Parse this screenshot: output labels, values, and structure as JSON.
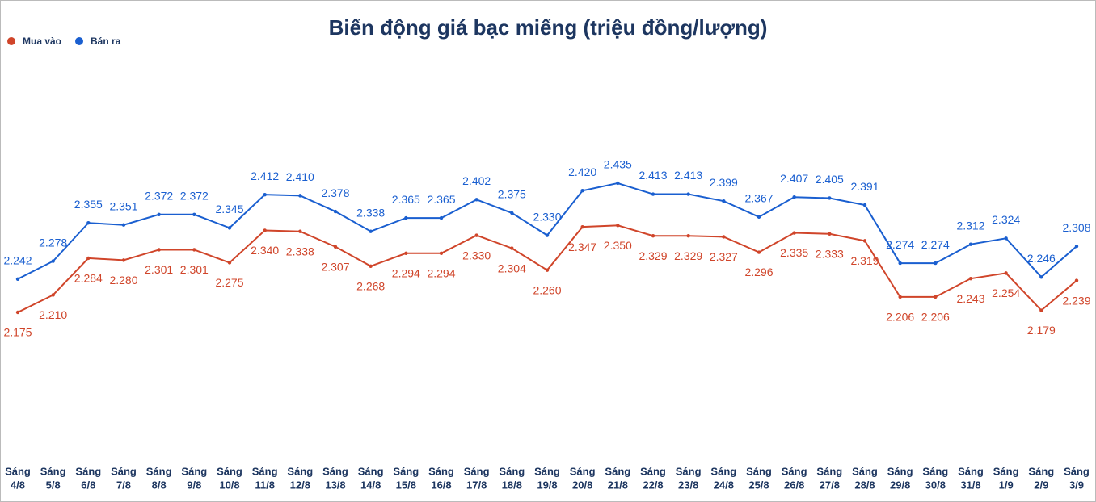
{
  "chart_data": {
    "type": "line",
    "title": "Biến động giá bạc miếng (triệu đồng/lượng)",
    "categories": [
      [
        "Sáng",
        "4/8"
      ],
      [
        "Sáng",
        "5/8"
      ],
      [
        "Sáng",
        "6/8"
      ],
      [
        "Sáng",
        "7/8"
      ],
      [
        "Sáng",
        "8/8"
      ],
      [
        "Sáng",
        "9/8"
      ],
      [
        "Sáng",
        "10/8"
      ],
      [
        "Sáng",
        "11/8"
      ],
      [
        "Sáng",
        "12/8"
      ],
      [
        "Sáng",
        "13/8"
      ],
      [
        "Sáng",
        "14/8"
      ],
      [
        "Sáng",
        "15/8"
      ],
      [
        "Sáng",
        "16/8"
      ],
      [
        "Sáng",
        "17/8"
      ],
      [
        "Sáng",
        "18/8"
      ],
      [
        "Sáng",
        "19/8"
      ],
      [
        "Sáng",
        "20/8"
      ],
      [
        "Sáng",
        "21/8"
      ],
      [
        "Sáng",
        "22/8"
      ],
      [
        "Sáng",
        "23/8"
      ],
      [
        "Sáng",
        "24/8"
      ],
      [
        "Sáng",
        "25/8"
      ],
      [
        "Sáng",
        "26/8"
      ],
      [
        "Sáng",
        "27/8"
      ],
      [
        "Sáng",
        "28/8"
      ],
      [
        "Sáng",
        "29/8"
      ],
      [
        "Sáng",
        "30/8"
      ],
      [
        "Sáng",
        "31/8"
      ],
      [
        "Sáng",
        "1/9"
      ],
      [
        "Sáng",
        "2/9"
      ],
      [
        "Sáng",
        "3/9"
      ]
    ],
    "series": [
      {
        "name": "Mua vào",
        "color": "#d0452a",
        "values": [
          2.175,
          2.21,
          2.284,
          2.28,
          2.301,
          2.301,
          2.275,
          2.34,
          2.338,
          2.307,
          2.268,
          2.294,
          2.294,
          2.33,
          2.304,
          2.26,
          2.347,
          2.35,
          2.329,
          2.329,
          2.327,
          2.296,
          2.335,
          2.333,
          2.319,
          2.206,
          2.206,
          2.243,
          2.254,
          2.179,
          2.239
        ],
        "value_labels": [
          "2.175",
          "2.210",
          "2.284",
          "2.280",
          "2.301",
          "2.301",
          "2.275",
          "2.340",
          "2.338",
          "2.307",
          "2.268",
          "2.294",
          "2.294",
          "2.330",
          "2.304",
          "2.260",
          "2.347",
          "2.350",
          "2.329",
          "2.329",
          "2.327",
          "2.296",
          "2.335",
          "2.333",
          "2.319",
          "2.206",
          "2.206",
          "2.243",
          "2.254",
          "2.179",
          "2.239"
        ]
      },
      {
        "name": "Bán ra",
        "color": "#1a5fd0",
        "values": [
          2.242,
          2.278,
          2.355,
          2.351,
          2.372,
          2.372,
          2.345,
          2.412,
          2.41,
          2.378,
          2.338,
          2.365,
          2.365,
          2.402,
          2.375,
          2.33,
          2.42,
          2.435,
          2.413,
          2.413,
          2.399,
          2.367,
          2.407,
          2.405,
          2.391,
          2.274,
          2.274,
          2.312,
          2.324,
          2.246,
          2.308
        ],
        "value_labels": [
          "2.242",
          "2.278",
          "2.355",
          "2.351",
          "2.372",
          "2.372",
          "2.345",
          "2.412",
          "2.410",
          "2.378",
          "2.338",
          "2.365",
          "2.365",
          "2.402",
          "2.375",
          "2.330",
          "2.420",
          "2.435",
          "2.413",
          "2.413",
          "2.399",
          "2.367",
          "2.407",
          "2.405",
          "2.391",
          "2.274",
          "2.274",
          "2.312",
          "2.324",
          "2.246",
          "2.308"
        ]
      }
    ]
  }
}
